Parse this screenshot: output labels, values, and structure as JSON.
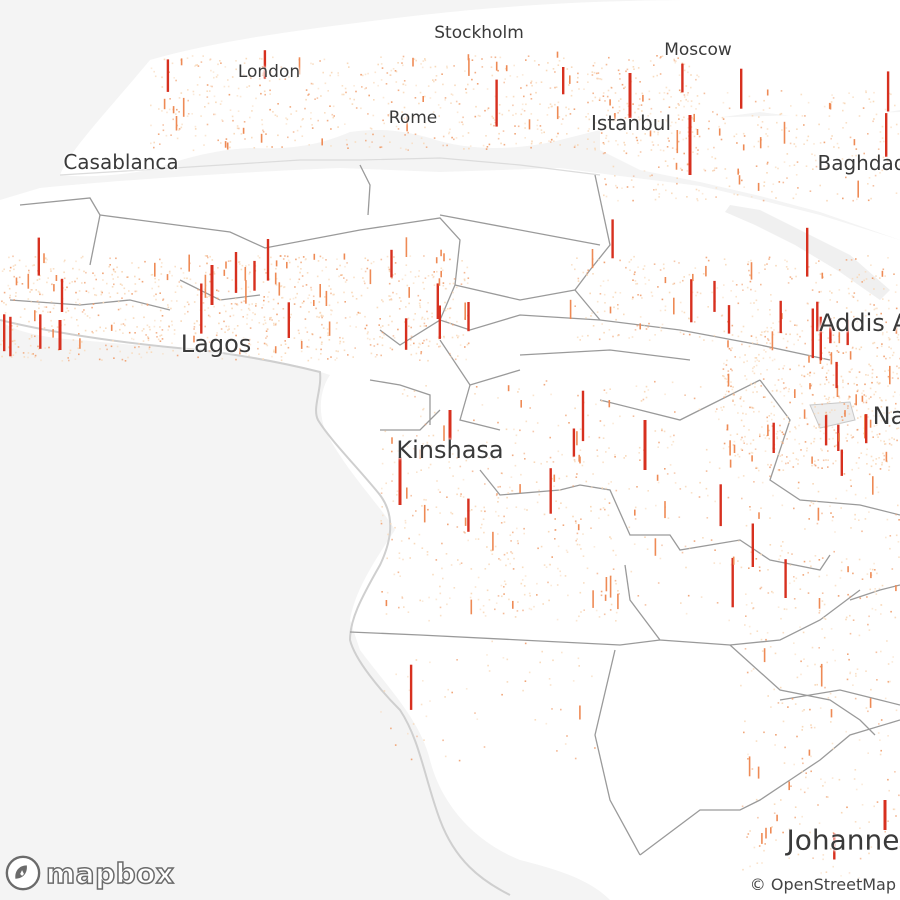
{
  "map": {
    "cities": [
      {
        "name": "Stockholm",
        "size": "sm"
      },
      {
        "name": "Moscow",
        "size": "sm"
      },
      {
        "name": "London",
        "size": "sm"
      },
      {
        "name": "Rome",
        "size": "sm"
      },
      {
        "name": "Istanbul",
        "size": "md"
      },
      {
        "name": "Casablanca",
        "size": "md"
      },
      {
        "name": "Baghdad",
        "size": "md"
      },
      {
        "name": "Addis A",
        "size": "lg"
      },
      {
        "name": "Lagos",
        "size": "lg"
      },
      {
        "name": "Na",
        "size": "lg"
      },
      {
        "name": "Kinshasa",
        "size": "lg"
      },
      {
        "name": "Johanne",
        "size": "xl"
      }
    ],
    "spike_color_low": "#f6c9a0",
    "spike_color_high": "#d7301f",
    "land_color": "#ffffff",
    "water_color": "#f4f4f4",
    "border_color": "#8c8c8c"
  },
  "branding": {
    "logo_text": "mapbox",
    "attribution": "© OpenStreetMap"
  }
}
